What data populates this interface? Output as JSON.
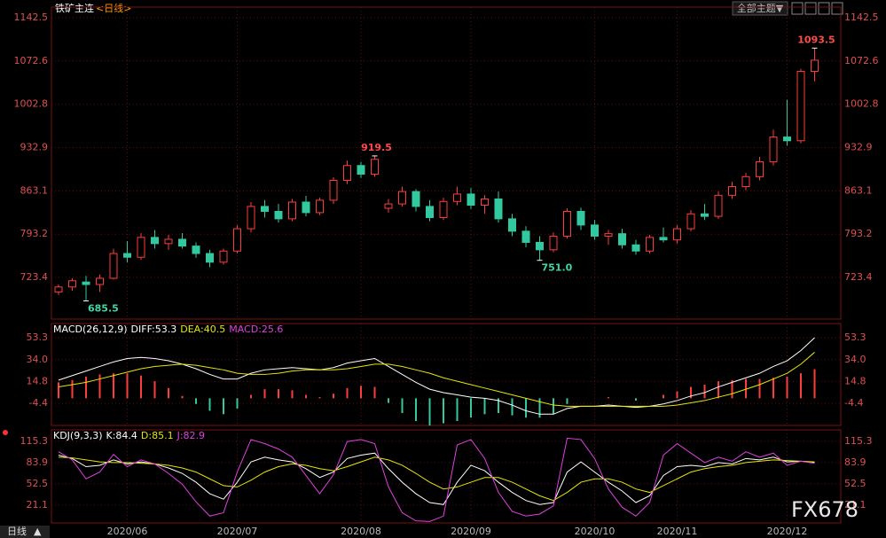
{
  "header": {
    "symbol": "铁矿主连",
    "period": "<日线>",
    "theme_button": "全部主题▼"
  },
  "footer": {
    "period": "日线"
  },
  "watermark": "FX678",
  "chart_data": [
    {
      "type": "candlestick",
      "up_color": "#ff3c3c",
      "down_color": "#33c9a0",
      "grid": true,
      "ylim": [
        656.2,
        1159.7
      ],
      "yticks": [
        1142.5,
        1072.6,
        1002.8,
        932.9,
        863.1,
        793.2,
        723.4
      ],
      "categories": [
        null,
        null,
        null,
        null,
        null,
        "2020/06",
        null,
        null,
        null,
        null,
        null,
        null,
        null,
        "2020/07",
        null,
        null,
        null,
        null,
        null,
        null,
        null,
        null,
        "2020/08",
        null,
        null,
        null,
        null,
        null,
        null,
        null,
        "2020/09",
        null,
        null,
        null,
        null,
        null,
        null,
        null,
        null,
        "2020/10",
        null,
        null,
        null,
        null,
        null,
        "2020/11",
        null,
        null,
        null,
        null,
        null,
        null,
        null,
        "2020/12",
        null,
        null
      ],
      "open": [
        700,
        708,
        716,
        712,
        722,
        762,
        756,
        788,
        778,
        785,
        774,
        762,
        748,
        766,
        802,
        838,
        830,
        818,
        845,
        828,
        848,
        880,
        904,
        890,
        835,
        842,
        862,
        838,
        820,
        846,
        858,
        840,
        850,
        818,
        798,
        780,
        768,
        790,
        830,
        808,
        790,
        794,
        776,
        766,
        788,
        784,
        802,
        826,
        822,
        856,
        870,
        886,
        910,
        950,
        944,
        1056
      ],
      "high": [
        712,
        722,
        726,
        728,
        770,
        782,
        795,
        800,
        792,
        795,
        780,
        768,
        770,
        808,
        845,
        848,
        842,
        850,
        855,
        852,
        885,
        912,
        910,
        919.5,
        850,
        870,
        866,
        848,
        852,
        870,
        868,
        856,
        862,
        826,
        806,
        790,
        796,
        835,
        836,
        816,
        800,
        802,
        784,
        792,
        804,
        808,
        832,
        842,
        862,
        878,
        892,
        918,
        962,
        1010,
        1060,
        1093.5
      ],
      "low": [
        695,
        702,
        685.5,
        700,
        720,
        748,
        752,
        770,
        768,
        770,
        755,
        740,
        744,
        762,
        796,
        820,
        812,
        814,
        822,
        824,
        842,
        874,
        884,
        886,
        828,
        838,
        830,
        814,
        816,
        840,
        834,
        826,
        812,
        790,
        772,
        751,
        764,
        786,
        800,
        784,
        776,
        770,
        760,
        762,
        780,
        778,
        798,
        816,
        818,
        850,
        864,
        880,
        904,
        936,
        940,
        1040
      ],
      "close": [
        708,
        718,
        712,
        722,
        762,
        756,
        788,
        778,
        785,
        774,
        762,
        748,
        766,
        802,
        838,
        830,
        818,
        845,
        828,
        848,
        880,
        904,
        890,
        914,
        842,
        862,
        838,
        820,
        846,
        858,
        840,
        850,
        818,
        798,
        780,
        768,
        790,
        830,
        808,
        790,
        794,
        776,
        766,
        788,
        784,
        802,
        826,
        822,
        856,
        870,
        886,
        910,
        950,
        944,
        1056,
        1074
      ],
      "annotations": [
        {
          "candle": 55,
          "kind": "high",
          "value": 1093.5,
          "label": "1093.5",
          "color": "#ff4a4a"
        },
        {
          "candle": 23,
          "kind": "high",
          "value": 919.5,
          "label": "919.5",
          "color": "#ff4a4a"
        },
        {
          "candle": 35,
          "kind": "low",
          "value": 751,
          "label": "751.0",
          "color": "#3fd6a8"
        },
        {
          "candle": 2,
          "kind": "low",
          "value": 685.5,
          "label": "685.5",
          "color": "#3fd6a8"
        }
      ]
    },
    {
      "type": "macd",
      "grid": true,
      "ylim": [
        -23.9,
        65.8
      ],
      "yticks": [
        53.3,
        {
          "value": 34,
          "label": "34.0"
        },
        14.8,
        -4.4
      ],
      "legend": [
        {
          "text": "MACD(26,12,9)",
          "color": "#ffffff"
        },
        {
          "text": "DIFF:53.3",
          "color": "#ffffff"
        },
        {
          "text": "DEA:40.5",
          "color": "#e6e600"
        },
        {
          "text": "MACD:25.6",
          "color": "#e040e0"
        }
      ],
      "up_color": "#ff3c3c",
      "down_color": "#33c9a0",
      "series": [
        {
          "name": "DIFF",
          "color": "#ffffff",
          "values": [
            16,
            20,
            24,
            28,
            32,
            35,
            36,
            35,
            33,
            30,
            26,
            21,
            17,
            17,
            22,
            25,
            26,
            27,
            26,
            25,
            27,
            31,
            33,
            35,
            28,
            21,
            14,
            8,
            5,
            3,
            1,
            0,
            -2,
            -6,
            -11,
            -14,
            -14,
            -9,
            -7,
            -7,
            -6,
            -7,
            -8,
            -7,
            -5,
            -2,
            2,
            5,
            10,
            14,
            18,
            22,
            28,
            33,
            42,
            53.3
          ]
        },
        {
          "name": "DEA",
          "color": "#e6e600",
          "values": [
            10,
            12,
            14,
            17,
            20,
            23,
            26,
            28,
            29,
            30,
            29,
            27,
            25,
            22,
            21,
            21,
            22,
            24,
            25,
            25,
            25,
            26,
            28,
            30,
            30,
            28,
            25,
            22,
            18,
            15,
            12,
            9,
            6,
            3,
            0,
            -3,
            -6,
            -7,
            -7,
            -7,
            -7,
            -7,
            -7,
            -7,
            -7,
            -6,
            -4,
            -2,
            1,
            4,
            8,
            12,
            17,
            22,
            30,
            40.5
          ]
        }
      ],
      "bars": [
        14,
        16,
        19,
        21,
        22,
        22,
        20,
        15,
        9,
        2,
        -5,
        -11,
        -14,
        -9,
        3,
        8,
        8,
        7,
        3,
        1,
        4,
        9,
        11,
        10,
        -4,
        -13,
        -20,
        -24,
        -22,
        -20,
        -17,
        -14,
        -13,
        -15,
        -17,
        -17,
        -14,
        -5,
        0,
        0,
        1,
        0,
        -2,
        0,
        3,
        6,
        10,
        12,
        15,
        16,
        17,
        17,
        18,
        19,
        22,
        25.6
      ]
    },
    {
      "type": "line",
      "grid": true,
      "ylim": [
        -5.1,
        132.3
      ],
      "yticks": [
        115.3,
        83.9,
        52.5,
        21.1
      ],
      "legend": [
        {
          "text": "KDJ(9,3,3)",
          "color": "#ffffff"
        },
        {
          "text": "K:84.4",
          "color": "#ffffff"
        },
        {
          "text": "D:85.1",
          "color": "#e6e600"
        },
        {
          "text": "J:82.9",
          "color": "#e040e0"
        }
      ],
      "series": [
        {
          "name": "K",
          "color": "#ffffff",
          "values": [
            95,
            90,
            78,
            80,
            88,
            82,
            85,
            82,
            76,
            68,
            55,
            38,
            30,
            55,
            85,
            92,
            88,
            85,
            75,
            62,
            70,
            90,
            95,
            98,
            75,
            55,
            38,
            25,
            22,
            55,
            80,
            72,
            55,
            40,
            28,
            22,
            25,
            70,
            85,
            70,
            55,
            42,
            25,
            35,
            65,
            78,
            80,
            78,
            84,
            82,
            90,
            88,
            92,
            85,
            86,
            84.4
          ]
        },
        {
          "name": "D",
          "color": "#e6e600",
          "values": [
            92,
            91,
            88,
            85,
            84,
            84,
            83,
            82,
            80,
            76,
            70,
            60,
            50,
            48,
            58,
            70,
            78,
            82,
            80,
            75,
            72,
            78,
            85,
            92,
            88,
            80,
            68,
            55,
            45,
            48,
            55,
            62,
            62,
            55,
            45,
            35,
            28,
            40,
            55,
            60,
            60,
            55,
            45,
            40,
            50,
            60,
            70,
            75,
            78,
            80,
            84,
            86,
            88,
            87,
            86,
            85.1
          ]
        },
        {
          "name": "J",
          "color": "#e040e0",
          "values": [
            100,
            88,
            60,
            70,
            96,
            78,
            88,
            82,
            68,
            52,
            26,
            5,
            10,
            70,
            118,
            112,
            104,
            92,
            65,
            38,
            66,
            115,
            118,
            112,
            48,
            10,
            -2,
            -3,
            5,
            110,
            118,
            90,
            40,
            12,
            5,
            8,
            20,
            120,
            118,
            90,
            45,
            18,
            5,
            25,
            95,
            112,
            98,
            84,
            92,
            86,
            100,
            92,
            98,
            80,
            86,
            82.9
          ]
        }
      ]
    }
  ]
}
